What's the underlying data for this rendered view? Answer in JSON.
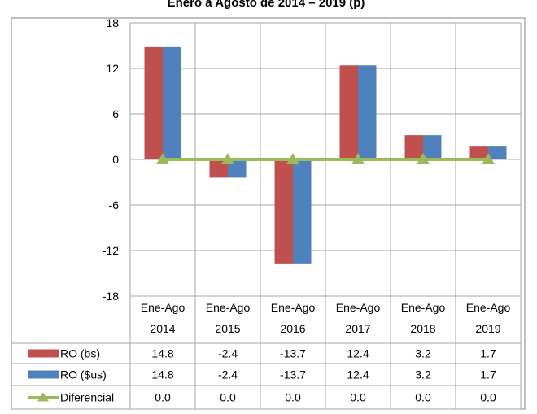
{
  "chart_data": {
    "type": "bar",
    "title": "Enero a Agosto de 2014 – 2019 (p)",
    "categories": [
      [
        "Ene-Ago",
        "2014"
      ],
      [
        "Ene-Ago",
        "2015"
      ],
      [
        "Ene-Ago",
        "2016"
      ],
      [
        "Ene-Ago",
        "2017"
      ],
      [
        "Ene-Ago",
        "2018"
      ],
      [
        "Ene-Ago",
        "2019"
      ]
    ],
    "ylim": [
      -18,
      18
    ],
    "yticks": [
      18,
      12,
      6,
      0,
      -6,
      -12,
      -18
    ],
    "grid": true,
    "series": [
      {
        "name": "RO (bs)",
        "type": "bar",
        "color": "#c0504d",
        "values": [
          14.8,
          -2.4,
          -13.7,
          12.4,
          3.2,
          1.7
        ],
        "labels": [
          "14.8",
          "-2.4",
          "-13.7",
          "12.4",
          "3.2",
          "1.7"
        ]
      },
      {
        "name": "RO ($us)",
        "type": "bar",
        "color": "#4f81bd",
        "values": [
          14.8,
          -2.4,
          -13.7,
          12.4,
          3.2,
          1.7
        ],
        "labels": [
          "14.8",
          "-2.4",
          "-13.7",
          "12.4",
          "3.2",
          "1.7"
        ]
      },
      {
        "name": "Diferencial",
        "type": "line",
        "color": "#9bbb59",
        "marker": "triangle",
        "values": [
          0.0,
          0.0,
          0.0,
          0.0,
          0.0,
          0.0
        ],
        "labels": [
          "0.0",
          "0.0",
          "0.0",
          "0.0",
          "0.0",
          "0.0"
        ]
      }
    ]
  }
}
